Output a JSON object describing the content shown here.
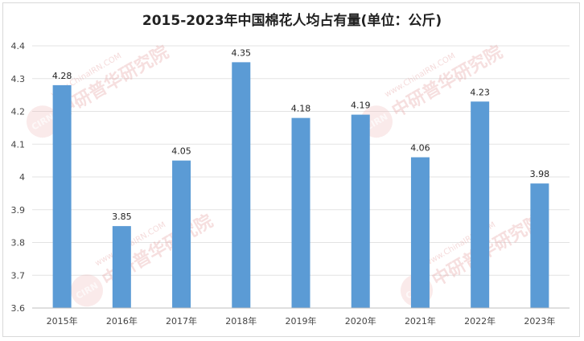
{
  "chart_data": {
    "type": "bar",
    "title": "2015-2023年中国棉花人均占有量(单位：公斤)",
    "categories": [
      "2015年",
      "2016年",
      "2017年",
      "2018年",
      "2019年",
      "2020年",
      "2021年",
      "2022年",
      "2023年"
    ],
    "values": [
      4.28,
      3.85,
      4.05,
      4.35,
      4.18,
      4.19,
      4.06,
      4.23,
      3.98
    ],
    "value_labels": [
      "4.28",
      "3.85",
      "4.05",
      "4.35",
      "4.18",
      "4.19",
      "4.06",
      "4.23",
      "3.98"
    ],
    "ylim": [
      3.6,
      4.4
    ],
    "yticks": [
      3.6,
      3.7,
      3.8,
      3.9,
      4.0,
      4.1,
      4.2,
      4.3,
      4.4
    ],
    "ytick_labels": [
      "3.6",
      "3.7",
      "3.8",
      "3.9",
      "4",
      "4.1",
      "4.2",
      "4.3",
      "4.4"
    ],
    "grid": true,
    "bar_color": "#5b9bd5"
  },
  "watermark": {
    "cn": "中研普华研究院",
    "en": "www.ChinaIRN.COM",
    "logo": "CIRN"
  }
}
